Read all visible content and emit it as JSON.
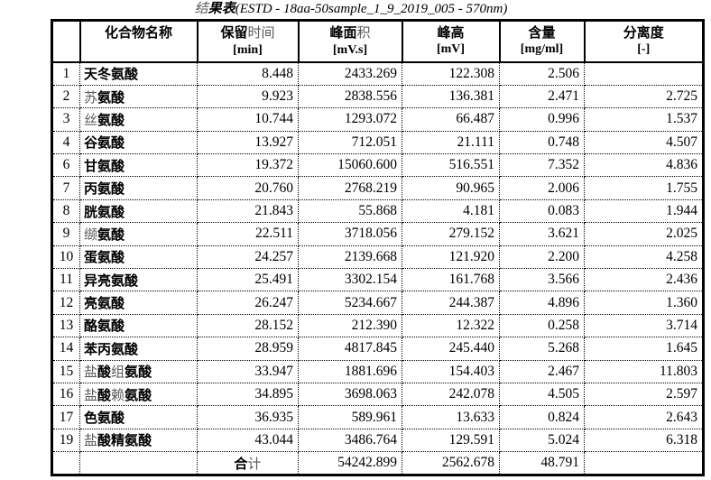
{
  "title": "结果表(ESTD - 18aa-50sample_1_9_2019_005 - 570nm)",
  "table": {
    "columns": [
      {
        "key": "no",
        "label": "",
        "unit": ""
      },
      {
        "key": "name",
        "label": "化合物名称",
        "unit": ""
      },
      {
        "key": "rt",
        "label": "保留时间",
        "unit": "[min]"
      },
      {
        "key": "area",
        "label": "峰面积",
        "unit": "[mV.s]"
      },
      {
        "key": "height",
        "label": "峰高",
        "unit": "[mV]"
      },
      {
        "key": "content",
        "label": "含量",
        "unit": "[mg/ml]"
      },
      {
        "key": "resolution",
        "label": "分离度",
        "unit": "[-]"
      }
    ],
    "rows": [
      {
        "no": "1",
        "name": "天冬氨酸",
        "rt": "8.448",
        "area": "2433.269",
        "height": "122.308",
        "content": "2.506",
        "resolution": ""
      },
      {
        "no": "2",
        "name": "苏氨酸",
        "rt": "9.923",
        "area": "2838.556",
        "height": "136.381",
        "content": "2.471",
        "resolution": "2.725"
      },
      {
        "no": "3",
        "name": "丝氨酸",
        "rt": "10.744",
        "area": "1293.072",
        "height": "66.487",
        "content": "0.996",
        "resolution": "1.537"
      },
      {
        "no": "4",
        "name": "谷氨酸",
        "rt": "13.927",
        "area": "712.051",
        "height": "21.111",
        "content": "0.748",
        "resolution": "4.507"
      },
      {
        "no": "6",
        "name": "甘氨酸",
        "rt": "19.372",
        "area": "15060.600",
        "height": "516.551",
        "content": "7.352",
        "resolution": "4.836"
      },
      {
        "no": "7",
        "name": "丙氨酸",
        "rt": "20.760",
        "area": "2768.219",
        "height": "90.965",
        "content": "2.006",
        "resolution": "1.755"
      },
      {
        "no": "8",
        "name": "胱氨酸",
        "rt": "21.843",
        "area": "55.868",
        "height": "4.181",
        "content": "0.083",
        "resolution": "1.944"
      },
      {
        "no": "9",
        "name": "缬氨酸",
        "rt": "22.511",
        "area": "3718.056",
        "height": "279.152",
        "content": "3.621",
        "resolution": "2.025"
      },
      {
        "no": "10",
        "name": "蛋氨酸",
        "rt": "24.257",
        "area": "2139.668",
        "height": "121.920",
        "content": "2.200",
        "resolution": "4.258"
      },
      {
        "no": "11",
        "name": "异亮氨酸",
        "rt": "25.491",
        "area": "3302.154",
        "height": "161.768",
        "content": "3.566",
        "resolution": "2.436"
      },
      {
        "no": "12",
        "name": "亮氨酸",
        "rt": "26.247",
        "area": "5234.667",
        "height": "244.387",
        "content": "4.896",
        "resolution": "1.360"
      },
      {
        "no": "13",
        "name": "酪氨酸",
        "rt": "28.152",
        "area": "212.390",
        "height": "12.322",
        "content": "0.258",
        "resolution": "3.714"
      },
      {
        "no": "14",
        "name": "苯丙氨酸",
        "rt": "28.959",
        "area": "4817.845",
        "height": "245.440",
        "content": "5.268",
        "resolution": "1.645"
      },
      {
        "no": "15",
        "name": "盐酸组氨酸",
        "rt": "33.947",
        "area": "1881.696",
        "height": "154.403",
        "content": "2.467",
        "resolution": "11.803"
      },
      {
        "no": "16",
        "name": "盐酸赖氨酸",
        "rt": "34.895",
        "area": "3698.063",
        "height": "242.078",
        "content": "4.505",
        "resolution": "2.597"
      },
      {
        "no": "17",
        "name": "色氨酸",
        "rt": "36.935",
        "area": "589.961",
        "height": "13.633",
        "content": "0.824",
        "resolution": "2.643"
      },
      {
        "no": "19",
        "name": "盐酸精氨酸",
        "rt": "43.044",
        "area": "3486.764",
        "height": "129.591",
        "content": "5.024",
        "resolution": "6.318"
      }
    ],
    "total": {
      "no": "",
      "name": "",
      "label": "合计",
      "area": "54242.899",
      "height": "2562.678",
      "content": "48.791",
      "resolution": ""
    }
  },
  "style": {
    "light_chars": "结苏时间积丝缬盐组赖计",
    "text_color": "#000000",
    "light_color": "#595959",
    "background": "#ffffff"
  }
}
